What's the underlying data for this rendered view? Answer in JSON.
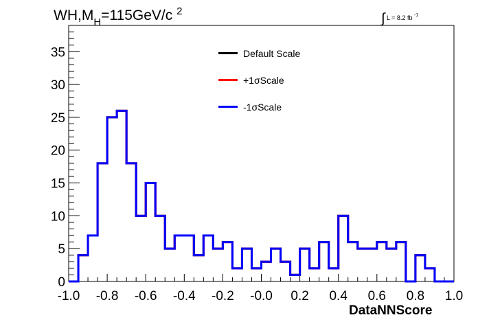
{
  "header": {
    "title_prefix": "WH,M",
    "title_sub": "H",
    "title_mid": "=115GeV/c",
    "title_sup": "2",
    "lumi_int": "∫",
    "lumi_text": "L = 8.2 fb",
    "lumi_sup": "-1"
  },
  "chart_data": {
    "type": "line",
    "style": "step histogram",
    "xlabel": "DataNNScore",
    "ylabel": "",
    "xlim": [
      -1.0,
      1.0
    ],
    "ylim": [
      0,
      39
    ],
    "x_ticks": [
      "-1.0",
      "-0.8",
      "-0.6",
      "-0.4",
      "-0.2",
      "-0.0",
      "0.2",
      "0.4",
      "0.6",
      "0.8",
      "1.0"
    ],
    "y_ticks": [
      "0",
      "5",
      "10",
      "15",
      "20",
      "25",
      "30",
      "35"
    ],
    "bin_edges": [
      -1.0,
      -0.95,
      -0.9,
      -0.85,
      -0.8,
      -0.75,
      -0.7,
      -0.65,
      -0.6,
      -0.55,
      -0.5,
      -0.45,
      -0.4,
      -0.35,
      -0.3,
      -0.25,
      -0.2,
      -0.15,
      -0.1,
      -0.05,
      0.0,
      0.05,
      0.1,
      0.15,
      0.2,
      0.25,
      0.3,
      0.35,
      0.4,
      0.45,
      0.5,
      0.55,
      0.6,
      0.65,
      0.7,
      0.75,
      0.8,
      0.85,
      0.9,
      0.95,
      1.0
    ],
    "legend_position": "top-center",
    "series": [
      {
        "name": "Default Scale",
        "color": "#000000",
        "values": [
          0,
          4,
          7,
          18,
          25,
          26,
          18,
          10,
          15,
          10,
          5,
          7,
          7,
          4,
          7,
          5,
          6,
          2,
          5,
          2,
          3,
          5,
          3,
          1,
          5,
          2,
          6,
          2,
          10,
          6,
          5,
          5,
          6,
          5,
          6,
          0,
          4,
          2,
          0,
          0
        ]
      },
      {
        "name": "+1σScale",
        "color": "#ff0000",
        "values": [
          0,
          4,
          7,
          18,
          25,
          26,
          18,
          10,
          15,
          10,
          5,
          7,
          7,
          4,
          7,
          5,
          6,
          2,
          5,
          2,
          3,
          5,
          3,
          1,
          5,
          2,
          6,
          2,
          10,
          6,
          5,
          5,
          6,
          5,
          6,
          0,
          4,
          2,
          0,
          0
        ]
      },
      {
        "name": "-1σScale",
        "color": "#0000ff",
        "values": [
          0,
          4,
          7,
          18,
          25,
          26,
          18,
          10,
          15,
          10,
          5,
          7,
          7,
          4,
          7,
          5,
          6,
          2,
          5,
          2,
          3,
          5,
          3,
          1,
          5,
          2,
          6,
          2,
          10,
          6,
          5,
          5,
          6,
          5,
          6,
          0,
          4,
          2,
          0,
          0
        ]
      }
    ]
  }
}
